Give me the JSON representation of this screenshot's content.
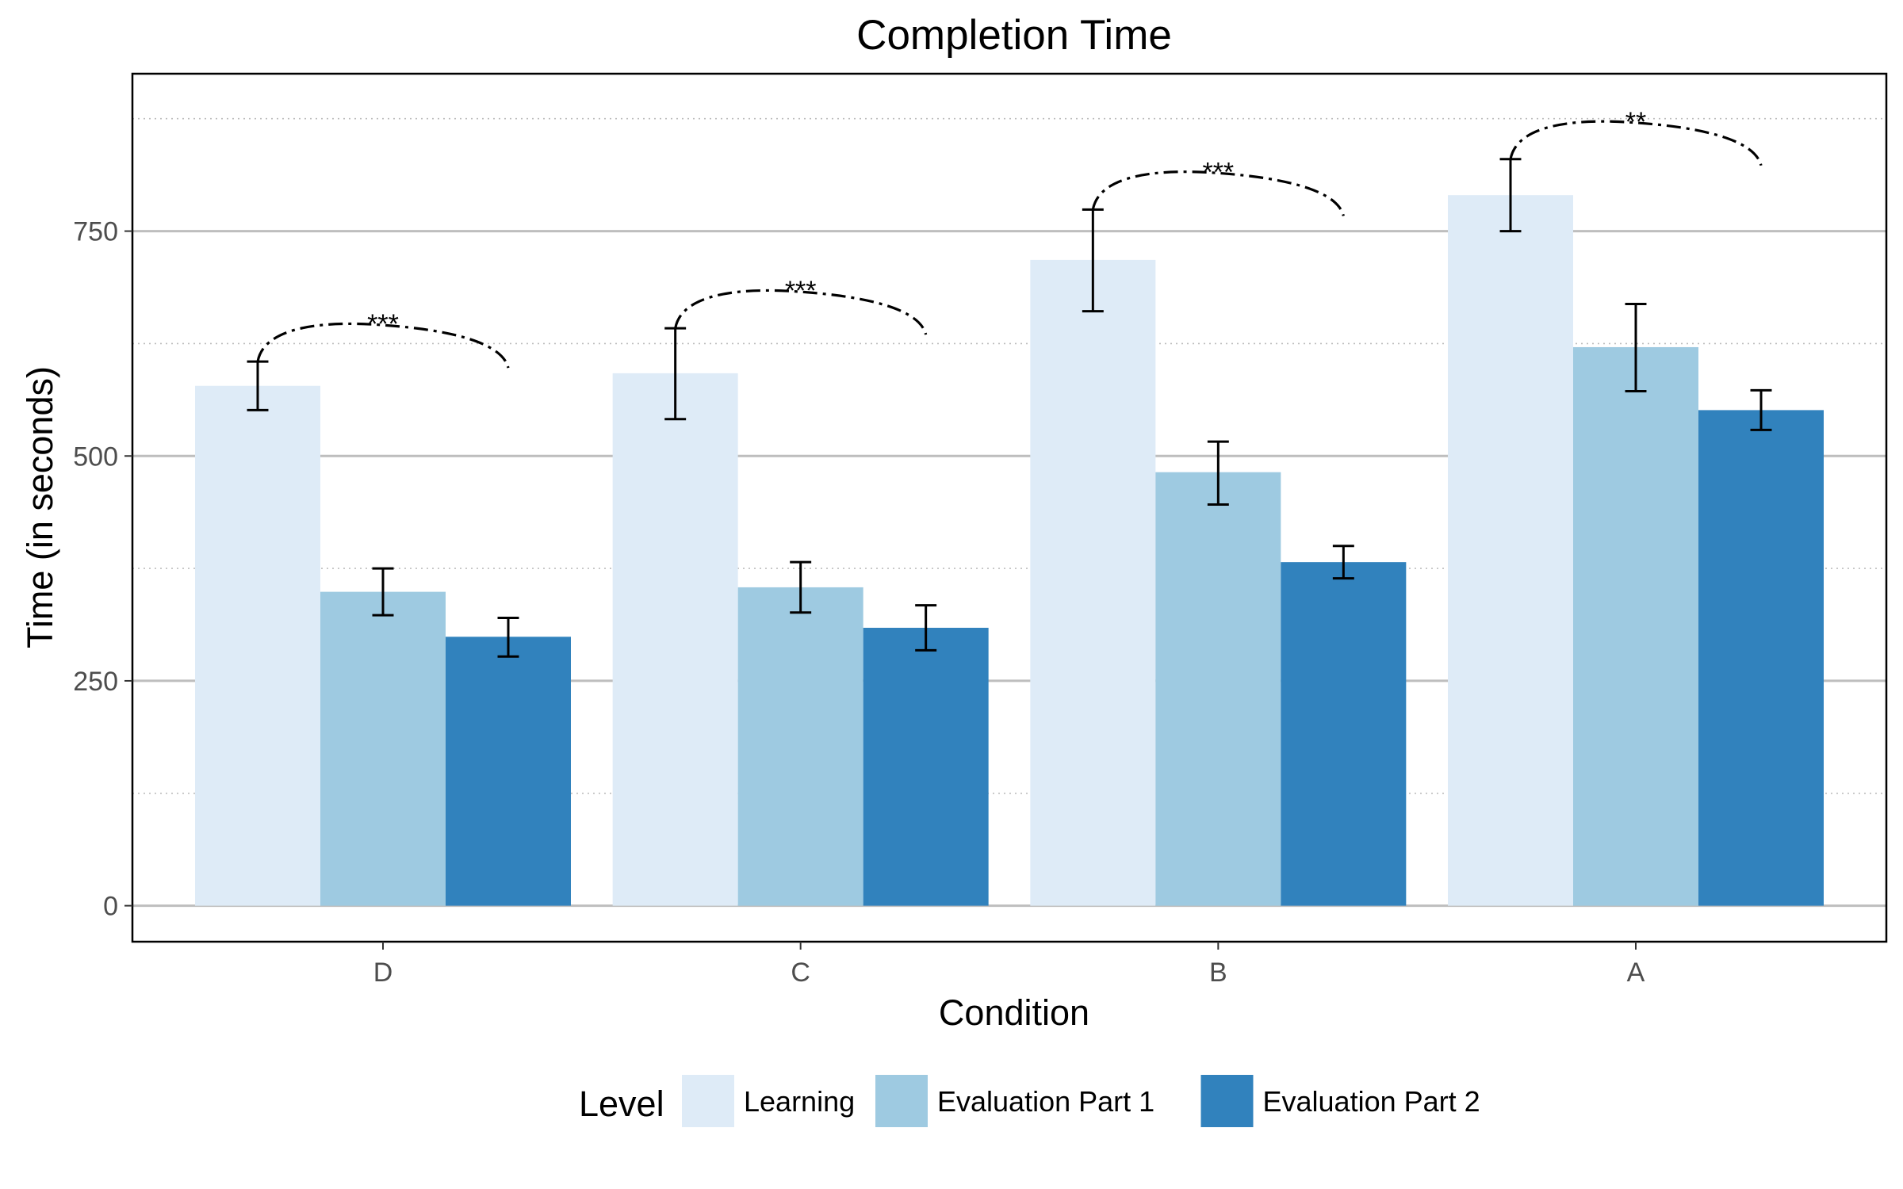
{
  "chart_data": {
    "type": "bar",
    "title": "Completion Time",
    "xlabel": "Condition",
    "ylabel": "Time (in seconds)",
    "ylim": [
      -40,
      925
    ],
    "yticks": [
      0,
      250,
      500,
      750
    ],
    "yticks_labels": [
      "0",
      "250",
      "500",
      "750"
    ],
    "minor_gridlines": [
      125,
      375,
      625,
      875
    ],
    "categories": [
      "D",
      "C",
      "B",
      "A"
    ],
    "series": [
      {
        "name": "Learning",
        "color": "#deebf7",
        "values": [
          578,
          592,
          718,
          790
        ],
        "error_low": [
          551,
          541,
          661,
          750
        ],
        "error_high": [
          605,
          642,
          774,
          830
        ]
      },
      {
        "name": "Evaluation Part 1",
        "color": "#9ecae1",
        "values": [
          349,
          354,
          482,
          621
        ],
        "error_low": [
          323,
          326,
          446,
          572
        ],
        "error_high": [
          375,
          382,
          516,
          669
        ]
      },
      {
        "name": "Evaluation Part 2",
        "color": "#3182bd",
        "values": [
          299,
          309,
          382,
          551
        ],
        "error_low": [
          277,
          284,
          364,
          529
        ],
        "error_high": [
          320,
          334,
          400,
          573
        ]
      }
    ],
    "significance": [
      "***",
      "***",
      "***",
      "**"
    ],
    "legend": {
      "title": "Level",
      "position": "bottom"
    },
    "grid": {
      "major_y": true,
      "minor_y": true,
      "x": false
    }
  }
}
